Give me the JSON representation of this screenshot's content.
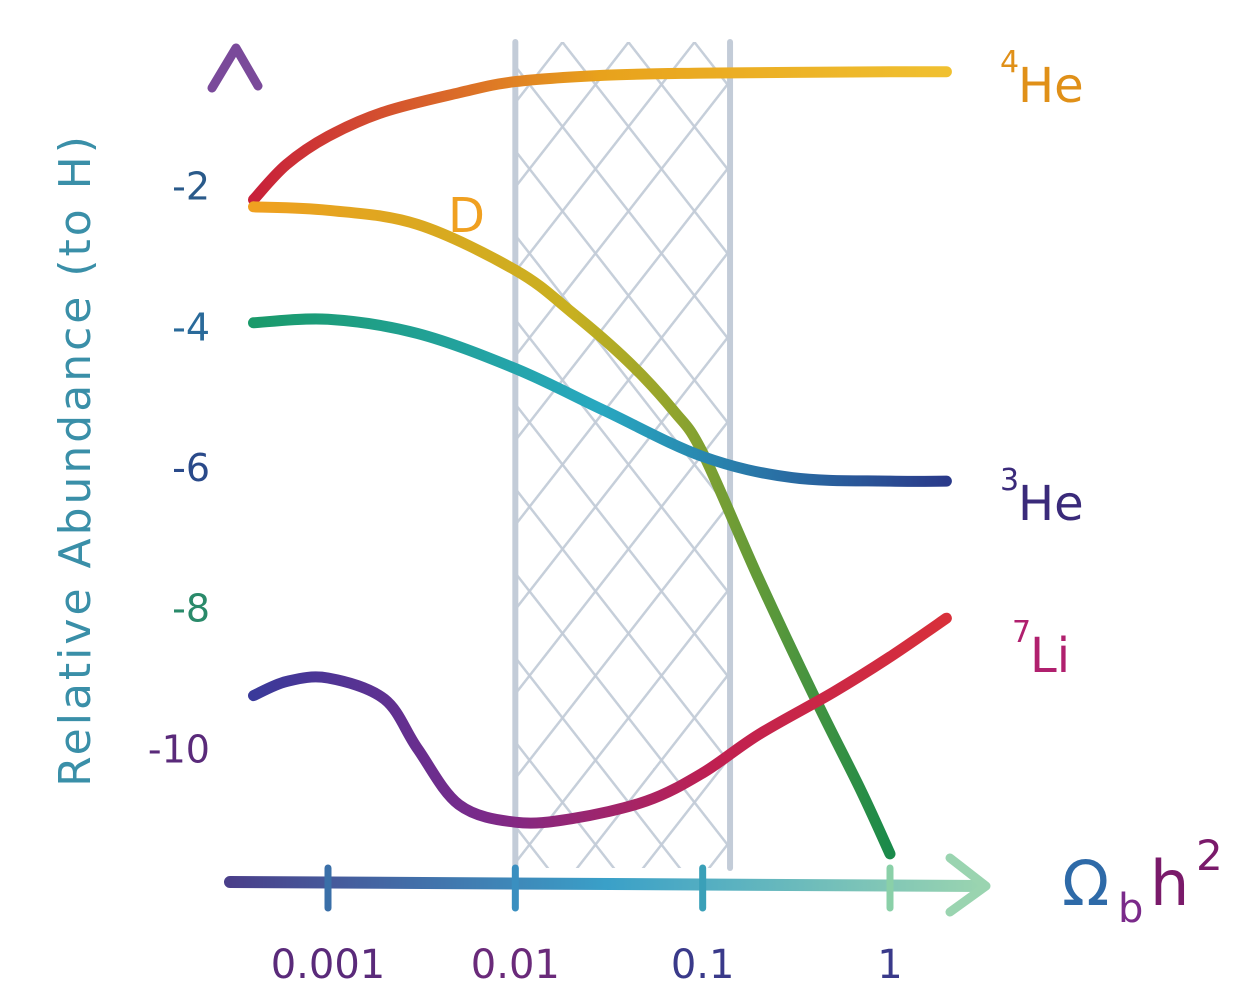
{
  "chart_data": {
    "type": "line",
    "ylabel": "Relative Abundance (to H)",
    "xlabel": {
      "base": "Ω",
      "sub": "b",
      "main": "h",
      "sup": "2"
    },
    "x_scale": "log",
    "xlim": [
      0.0003,
      2.5
    ],
    "ylim": [
      -11.9,
      0
    ],
    "x_ticks": [
      0.001,
      0.01,
      0.1,
      1
    ],
    "x_tick_labels": [
      "0.001",
      "0.01",
      "0.1",
      "1"
    ],
    "y_ticks": [
      -2,
      -4,
      -6,
      -8,
      -10
    ],
    "y_tick_labels": [
      "-2",
      "-4",
      "-6",
      "-8",
      "-10"
    ],
    "grid": false,
    "shaded_band": {
      "x_range": [
        0.01,
        0.14
      ],
      "pattern": "crosshatch"
    },
    "series": [
      {
        "name": "He",
        "sup": "4",
        "color": "#e8a21c",
        "x": [
          0.0004,
          0.0006,
          0.001,
          0.002,
          0.005,
          0.01,
          0.03,
          0.1,
          0.3,
          1,
          2
        ],
        "y": [
          -2.2,
          -1.7,
          -1.3,
          -0.95,
          -0.68,
          -0.52,
          -0.43,
          -0.4,
          -0.39,
          -0.38,
          -0.38
        ]
      },
      {
        "name": "D",
        "color": "#f0a020",
        "x": [
          0.0004,
          0.001,
          0.003,
          0.01,
          0.02,
          0.04,
          0.07,
          0.1,
          0.2,
          0.4,
          0.7,
          1
        ],
        "y": [
          -2.3,
          -2.35,
          -2.55,
          -3.2,
          -3.8,
          -4.5,
          -5.2,
          -5.8,
          -7.6,
          -9.3,
          -10.6,
          -11.5
        ]
      },
      {
        "name": "He",
        "sup": "3",
        "color": "#1a9a88",
        "x": [
          0.0004,
          0.001,
          0.003,
          0.01,
          0.03,
          0.1,
          0.3,
          1,
          2
        ],
        "y": [
          -3.95,
          -3.9,
          -4.1,
          -4.6,
          -5.2,
          -5.85,
          -6.15,
          -6.2,
          -6.2
        ]
      },
      {
        "name": "Li",
        "sup": "7",
        "color": "#b0206e",
        "x": [
          0.0004,
          0.0006,
          0.001,
          0.002,
          0.003,
          0.005,
          0.01,
          0.02,
          0.05,
          0.1,
          0.2,
          0.5,
          1,
          2
        ],
        "y": [
          -9.25,
          -9.05,
          -9.0,
          -9.3,
          -10.0,
          -10.8,
          -11.05,
          -11.0,
          -10.75,
          -10.35,
          -9.8,
          -9.2,
          -8.7,
          -8.15
        ]
      }
    ]
  },
  "colors": {
    "axis_y": "#2f7fb0",
    "axis_x": "#3a6fa8",
    "hatch": "#c3ccd8",
    "ylabel": "#3a8fa8",
    "xlabel_omega": "#2e6aa8",
    "xlabel_h": "#7a1a6a"
  }
}
